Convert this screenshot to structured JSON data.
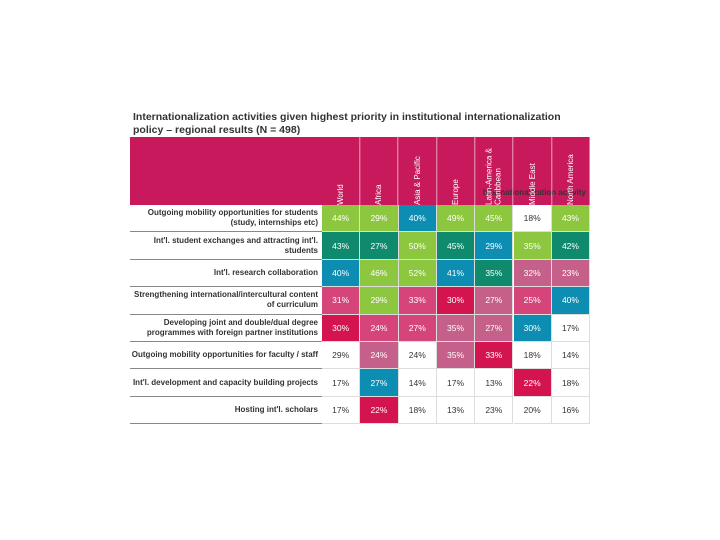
{
  "title": "Internationalization activities given highest priority in institutional internationalization policy – regional results (N = 498)",
  "table": {
    "header_label": "Internationalization activity",
    "header_color": "#c8195c",
    "columns": [
      "World",
      "Africa",
      "Asia & Pacific",
      "Europe",
      "Latin-America & Caribbean",
      "Middle East",
      "North America"
    ],
    "rows": [
      {
        "label": "Outgoing mobility opportunities for students (study, internships etc)",
        "cells": [
          {
            "text": "44%",
            "color": "#8dc63f"
          },
          {
            "text": "29%",
            "color": "#8dc63f"
          },
          {
            "text": "40%",
            "color": "#0e8db2"
          },
          {
            "text": "49%",
            "color": "#8dc63f"
          },
          {
            "text": "45%",
            "color": "#8dc63f"
          },
          {
            "text": "18%",
            "color": "#ffffff"
          },
          {
            "text": "43%",
            "color": "#8dc63f"
          }
        ]
      },
      {
        "label": "Int'l. student exchanges and attracting int'l. students",
        "cells": [
          {
            "text": "43%",
            "color": "#0f8a6c"
          },
          {
            "text": "27%",
            "color": "#0f8a6c"
          },
          {
            "text": "50%",
            "color": "#8dc63f"
          },
          {
            "text": "45%",
            "color": "#0f8a6c"
          },
          {
            "text": "29%",
            "color": "#0e8db2"
          },
          {
            "text": "35%",
            "color": "#8dc63f"
          },
          {
            "text": "42%",
            "color": "#0f8a6c"
          }
        ]
      },
      {
        "label": "Int'l. research collaboration",
        "cells": [
          {
            "text": "40%",
            "color": "#0e8db2"
          },
          {
            "text": "46%",
            "color": "#8dc63f"
          },
          {
            "text": "52%",
            "color": "#8dc63f"
          },
          {
            "text": "41%",
            "color": "#0e8db2"
          },
          {
            "text": "35%",
            "color": "#0f8a6c"
          },
          {
            "text": "32%",
            "color": "#c5608a"
          },
          {
            "text": "23%",
            "color": "#c5608a"
          }
        ]
      },
      {
        "label": "Strengthening international/intercultural content of curriculum",
        "cells": [
          {
            "text": "31%",
            "color": "#d6457a"
          },
          {
            "text": "29%",
            "color": "#8dc63f"
          },
          {
            "text": "33%",
            "color": "#d6457a"
          },
          {
            "text": "30%",
            "color": "#d3144f"
          },
          {
            "text": "27%",
            "color": "#c5608a"
          },
          {
            "text": "25%",
            "color": "#d6457a"
          },
          {
            "text": "40%",
            "color": "#0e8db2"
          }
        ]
      },
      {
        "label": "Developing joint and double/dual degree programmes with foreign partner institutions",
        "cells": [
          {
            "text": "30%",
            "color": "#d3144f"
          },
          {
            "text": "24%",
            "color": "#d6457a"
          },
          {
            "text": "27%",
            "color": "#d6457a"
          },
          {
            "text": "35%",
            "color": "#c5608a"
          },
          {
            "text": "27%",
            "color": "#c5608a"
          },
          {
            "text": "30%",
            "color": "#0e8db2"
          },
          {
            "text": "17%",
            "color": "#ffffff"
          }
        ]
      },
      {
        "label": "Outgoing mobility opportunities for faculty / staff",
        "cells": [
          {
            "text": "29%",
            "color": "#ffffff"
          },
          {
            "text": "24%",
            "color": "#c5608a"
          },
          {
            "text": "24%",
            "color": "#ffffff"
          },
          {
            "text": "35%",
            "color": "#c5608a"
          },
          {
            "text": "33%",
            "color": "#d3144f"
          },
          {
            "text": "18%",
            "color": "#ffffff"
          },
          {
            "text": "14%",
            "color": "#ffffff"
          }
        ]
      },
      {
        "label": "Int'l. development and capacity building projects",
        "cells": [
          {
            "text": "17%",
            "color": "#ffffff"
          },
          {
            "text": "27%",
            "color": "#0e8db2"
          },
          {
            "text": "14%",
            "color": "#ffffff"
          },
          {
            "text": "17%",
            "color": "#ffffff"
          },
          {
            "text": "13%",
            "color": "#ffffff"
          },
          {
            "text": "22%",
            "color": "#d3144f"
          },
          {
            "text": "18%",
            "color": "#ffffff"
          }
        ]
      },
      {
        "label": "Hosting int'l. scholars",
        "cells": [
          {
            "text": "17%",
            "color": "#ffffff"
          },
          {
            "text": "22%",
            "color": "#d3144f"
          },
          {
            "text": "18%",
            "color": "#ffffff"
          },
          {
            "text": "13%",
            "color": "#ffffff"
          },
          {
            "text": "23%",
            "color": "#ffffff"
          },
          {
            "text": "20%",
            "color": "#ffffff"
          },
          {
            "text": "16%",
            "color": "#ffffff"
          }
        ]
      }
    ]
  }
}
